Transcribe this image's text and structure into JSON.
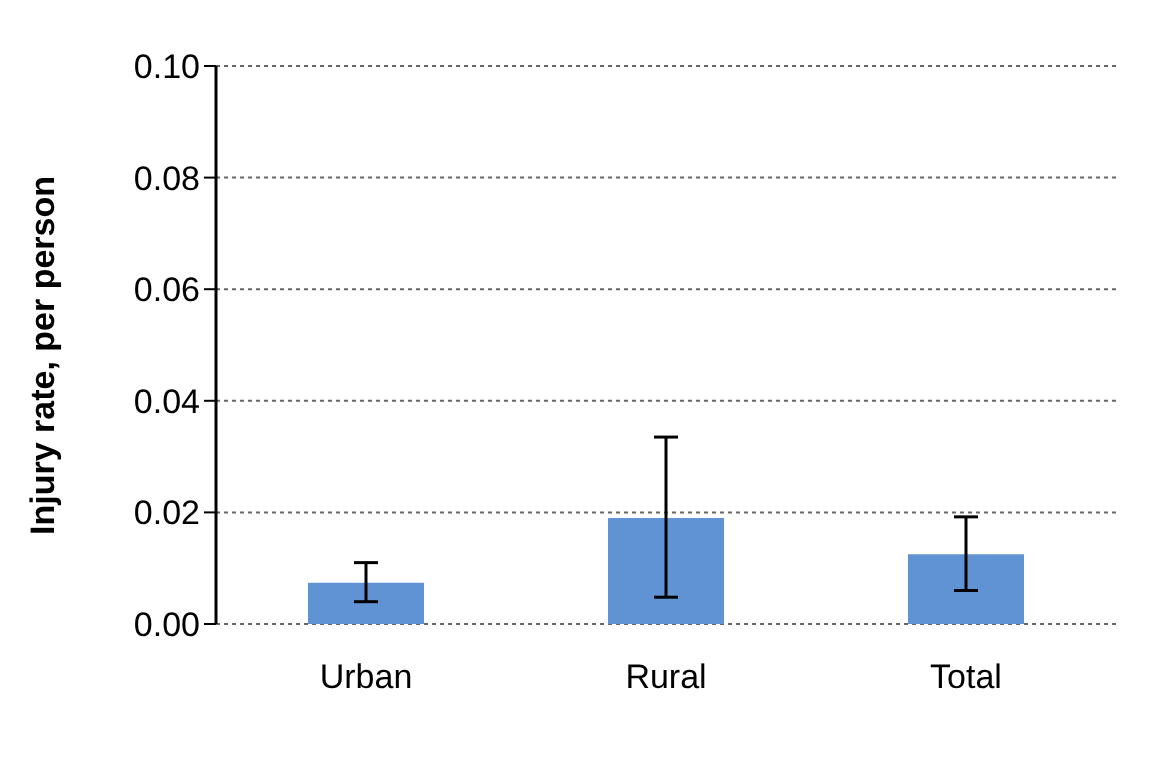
{
  "chart_data": {
    "type": "bar",
    "ylabel": "Injury rate, per person",
    "categories": [
      "Urban",
      "Rural",
      "Total"
    ],
    "values": [
      0.0074,
      0.019,
      0.0125
    ],
    "errors": [
      [
        0.004,
        0.011
      ],
      [
        0.0048,
        0.0335
      ],
      [
        0.006,
        0.0192
      ]
    ],
    "color": "#5f93d3",
    "ylim": [
      0,
      0.1
    ],
    "yticks": [
      {
        "value": 0,
        "label": "0.00"
      },
      {
        "value": 0.02,
        "label": "0.02"
      },
      {
        "value": 0.04,
        "label": "0.04"
      },
      {
        "value": 0.06,
        "label": "0.06"
      },
      {
        "value": 0.08,
        "label": "0.08"
      },
      {
        "value": 0.1,
        "label": "0.10"
      }
    ],
    "grid": "y"
  }
}
